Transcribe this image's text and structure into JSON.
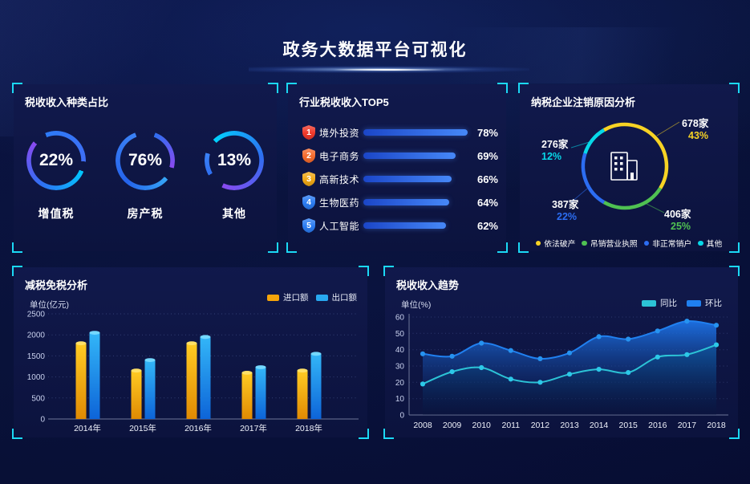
{
  "title": "政务大数据平台可视化",
  "theme": {
    "bracket_color": "#1bd9f5",
    "panel_bg": "#0d1546",
    "page_bg": "#070c31",
    "top5_bar_color": "#4688f8"
  },
  "chart_data": [
    {
      "id": "tax-income-types",
      "type": "donut",
      "title": "税收收入种类占比",
      "items": [
        {
          "label": "增值税",
          "value": 22
        },
        {
          "label": "房产税",
          "value": 76
        },
        {
          "label": "其他",
          "value": 13
        }
      ]
    },
    {
      "id": "industry-top5",
      "type": "bar",
      "title": "行业税收收入TOP5",
      "categories": [
        "境外投资",
        "电子商务",
        "高新技术",
        "生物医药",
        "人工智能"
      ],
      "values": [
        78,
        69,
        66,
        64,
        62
      ],
      "ranks": [
        1,
        2,
        3,
        4,
        5
      ],
      "badge_colors": [
        "#f0392b",
        "#f56a2c",
        "#f0a816",
        "#2b7cf2",
        "#2b7cf2"
      ],
      "xlim": [
        0,
        80
      ]
    },
    {
      "id": "cancellation-reasons",
      "type": "pie",
      "title": "纳税企业注销原因分析",
      "segments": [
        {
          "label": "依法破产",
          "count_label": "678家",
          "pct": 43,
          "color": "#f7d324"
        },
        {
          "label": "吊销营业执照",
          "count_label": "406家",
          "pct": 25,
          "color": "#4fc152"
        },
        {
          "label": "非正常销户",
          "count_label": "387家",
          "pct": 22,
          "color": "#2c6df2"
        },
        {
          "label": "其他",
          "count_label": "276家",
          "pct": 12,
          "color": "#07d8e8"
        }
      ],
      "center_icon": "building-icon",
      "legend_position": "bottom"
    },
    {
      "id": "tax-reduction",
      "type": "bar",
      "title": "减税免税分析",
      "unit": "单位(亿元)",
      "categories": [
        "2014年",
        "2015年",
        "2016年",
        "2017年",
        "2018年"
      ],
      "series": [
        {
          "name": "进口额",
          "color": "#f5a40a",
          "values": [
            1800,
            1150,
            1800,
            1100,
            1150
          ]
        },
        {
          "name": "出口额",
          "color": "#28a8f0",
          "values": [
            2050,
            1400,
            1950,
            1230,
            1550
          ]
        }
      ],
      "ylim": [
        0,
        2500
      ],
      "yticks": [
        0,
        500,
        1000,
        1500,
        2000,
        2500
      ],
      "grid": "dotted",
      "legend_position": "top-right"
    },
    {
      "id": "revenue-trend",
      "type": "area",
      "title": "税收收入趋势",
      "unit": "单位(%)",
      "x": [
        "2008",
        "2009",
        "2010",
        "2011",
        "2012",
        "2013",
        "2014",
        "2015",
        "2016",
        "2017",
        "2018"
      ],
      "series": [
        {
          "name": "同比",
          "color": "#2cc3d6",
          "values": [
            19,
            26.5,
            29,
            22,
            20,
            25,
            28,
            26,
            35.5,
            37,
            43
          ]
        },
        {
          "name": "环比",
          "color": "#2080f0",
          "values": [
            37.5,
            36,
            44,
            39.5,
            34.5,
            38,
            48,
            46.5,
            51.5,
            57.5,
            55
          ]
        }
      ],
      "ylim": [
        0,
        60
      ],
      "yticks": [
        0,
        10,
        20,
        30,
        40,
        50,
        60
      ],
      "grid": "dotted",
      "legend_position": "top-right"
    }
  ]
}
